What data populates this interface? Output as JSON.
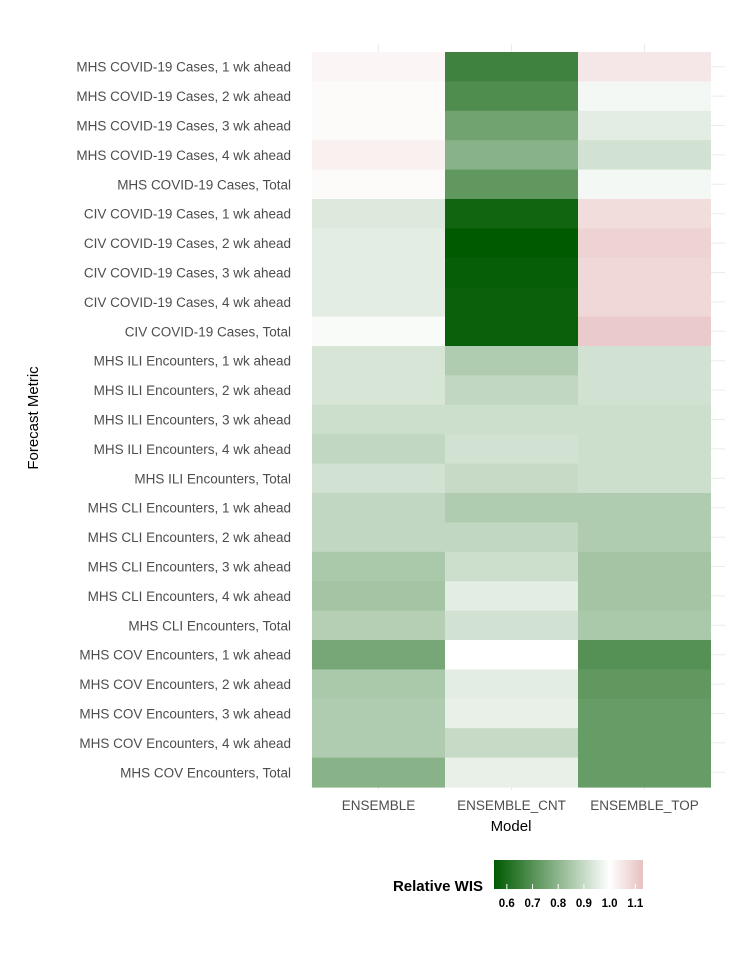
{
  "chart_data": {
    "type": "heatmap",
    "title": "",
    "xlabel": "Model",
    "ylabel": "Forecast Metric",
    "columns": [
      "ENSEMBLE",
      "ENSEMBLE_CNT",
      "ENSEMBLE_TOP"
    ],
    "rows": [
      "MHS COVID-19 Cases, 1 wk ahead",
      "MHS COVID-19 Cases, 2 wk ahead",
      "MHS COVID-19 Cases, 3 wk ahead",
      "MHS COVID-19 Cases, 4 wk ahead",
      "MHS COVID-19 Cases, Total",
      "CIV COVID-19 Cases, 1 wk ahead",
      "CIV COVID-19 Cases, 2 wk ahead",
      "CIV COVID-19 Cases, 3 wk ahead",
      "CIV COVID-19 Cases, 4 wk ahead",
      "CIV COVID-19 Cases, Total",
      "MHS ILI Encounters, 1 wk ahead",
      "MHS ILI Encounters, 2 wk ahead",
      "MHS ILI Encounters, 3 wk ahead",
      "MHS ILI Encounters, 4 wk ahead",
      "MHS ILI Encounters, Total",
      "MHS CLI Encounters, 1 wk ahead",
      "MHS CLI Encounters, 2 wk ahead",
      "MHS CLI Encounters, 3 wk ahead",
      "MHS CLI Encounters, 4 wk ahead",
      "MHS CLI Encounters, Total",
      "MHS COV Encounters, 1 wk ahead",
      "MHS COV Encounters, 2 wk ahead",
      "MHS COV Encounters, 3 wk ahead",
      "MHS COV Encounters, 4 wk ahead",
      "MHS COV Encounters, Total"
    ],
    "values": [
      [
        1.02,
        0.66,
        1.05
      ],
      [
        1.01,
        0.69,
        0.98
      ],
      [
        1.01,
        0.75,
        0.95
      ],
      [
        1.03,
        0.79,
        0.92
      ],
      [
        1.01,
        0.72,
        0.98
      ],
      [
        0.94,
        0.58,
        1.07
      ],
      [
        0.95,
        0.55,
        1.09
      ],
      [
        0.95,
        0.56,
        1.08
      ],
      [
        0.95,
        0.57,
        1.08
      ],
      [
        0.99,
        0.57,
        1.11
      ],
      [
        0.93,
        0.86,
        0.92
      ],
      [
        0.93,
        0.89,
        0.92
      ],
      [
        0.91,
        0.91,
        0.91
      ],
      [
        0.89,
        0.92,
        0.91
      ],
      [
        0.92,
        0.9,
        0.91
      ],
      [
        0.89,
        0.86,
        0.86
      ],
      [
        0.89,
        0.89,
        0.86
      ],
      [
        0.85,
        0.91,
        0.84
      ],
      [
        0.84,
        0.95,
        0.84
      ],
      [
        0.87,
        0.92,
        0.85
      ],
      [
        0.76,
        1.0,
        0.7
      ],
      [
        0.85,
        0.95,
        0.72
      ],
      [
        0.86,
        0.96,
        0.73
      ],
      [
        0.86,
        0.9,
        0.73
      ],
      [
        0.79,
        0.96,
        0.73
      ]
    ],
    "legend": {
      "title": "Relative WIS",
      "ticks": [
        "0.6",
        "0.7",
        "0.8",
        "0.9",
        "1.0",
        "1.1"
      ],
      "min": 0.55,
      "mid": 1.0,
      "max": 1.13,
      "low_color": "#005a00",
      "mid_color": "#ffffff",
      "high_color": "#e6c0c0",
      "placement": "bottom"
    }
  }
}
